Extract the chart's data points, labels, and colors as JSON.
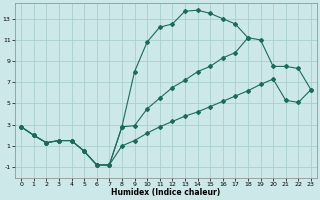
{
  "xlabel": "Humidex (Indice chaleur)",
  "xlim": [
    -0.5,
    23.5
  ],
  "ylim": [
    -2.0,
    14.5
  ],
  "xticks": [
    0,
    1,
    2,
    3,
    4,
    5,
    6,
    7,
    8,
    9,
    10,
    11,
    12,
    13,
    14,
    15,
    16,
    17,
    18,
    19,
    20,
    21,
    22,
    23
  ],
  "yticks": [
    -1,
    1,
    3,
    5,
    7,
    9,
    11,
    13
  ],
  "background_color": "#cde8e8",
  "grid_color": "#aacece",
  "line_color": "#1a6b5a",
  "line1_x": [
    0,
    1,
    2,
    3,
    4,
    5,
    6,
    7,
    8,
    9,
    10,
    11,
    12,
    13,
    14,
    15,
    16,
    17,
    18
  ],
  "line1_y": [
    2.8,
    2.0,
    1.3,
    1.5,
    1.5,
    0.5,
    -0.8,
    -0.8,
    2.8,
    8.0,
    10.8,
    12.2,
    12.5,
    13.7,
    13.8,
    13.5,
    13.0,
    12.5,
    11.2
  ],
  "line2_x": [
    0,
    1,
    2,
    3,
    4,
    5,
    6,
    7,
    8,
    9,
    10,
    11,
    12,
    13,
    14,
    15,
    16,
    17,
    18,
    19,
    20,
    21,
    22,
    23
  ],
  "line2_y": [
    2.8,
    2.0,
    1.3,
    1.5,
    1.5,
    0.5,
    -0.8,
    -0.8,
    2.8,
    2.9,
    4.5,
    5.5,
    6.5,
    7.2,
    8.0,
    8.5,
    9.3,
    9.8,
    11.2,
    11.0,
    8.5,
    8.5,
    8.3,
    6.3
  ],
  "line3_x": [
    0,
    1,
    2,
    3,
    4,
    5,
    6,
    7,
    8,
    9,
    10,
    11,
    12,
    13,
    14,
    15,
    16,
    17,
    18,
    19,
    20,
    21,
    22,
    23
  ],
  "line3_y": [
    2.8,
    2.0,
    1.3,
    1.5,
    1.5,
    0.5,
    -0.8,
    -0.8,
    1.0,
    1.5,
    2.2,
    2.8,
    3.3,
    3.8,
    4.2,
    4.7,
    5.2,
    5.7,
    6.2,
    6.8,
    7.3,
    5.3,
    5.1,
    6.3
  ]
}
